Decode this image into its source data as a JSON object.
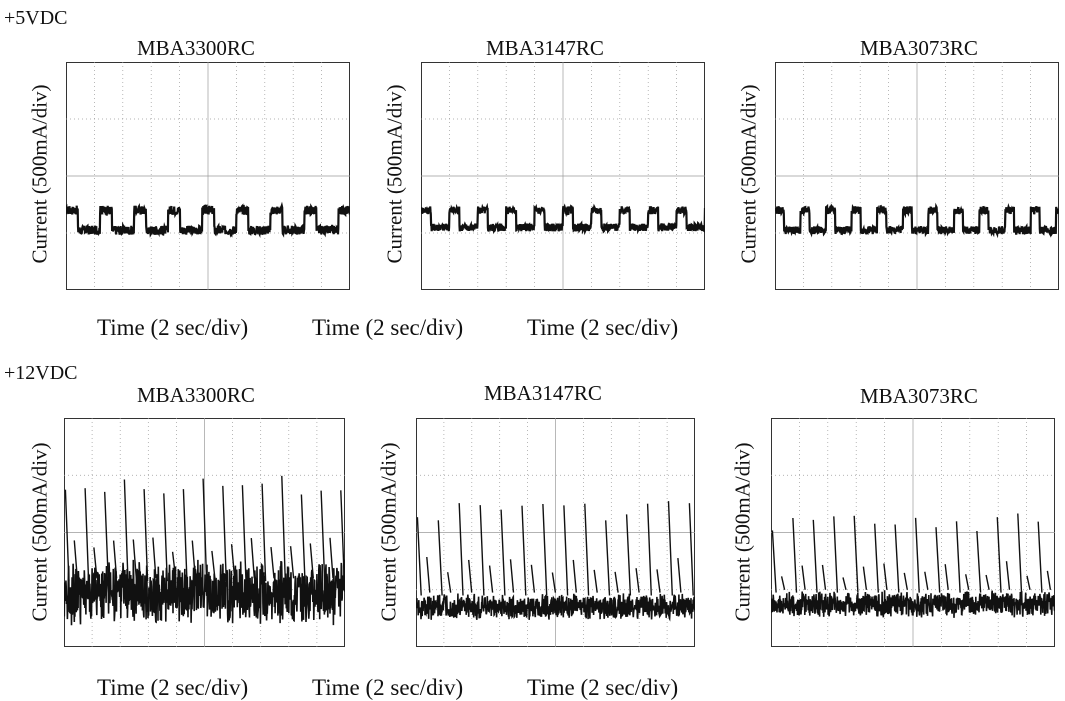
{
  "rows": [
    {
      "label": "+5VDC",
      "xlabels": [
        "Time (2 sec/div)",
        "Time (2 sec/div)",
        "Time (2 sec/div)"
      ],
      "panels": [
        {
          "title": "MBA3300RC",
          "ylabel": "Current (500mA/div)"
        },
        {
          "title": "MBA3147RC",
          "ylabel": "Current (500mA/div)"
        },
        {
          "title": "MBA3073RC",
          "ylabel": "Current (500mA/div)"
        }
      ]
    },
    {
      "label": "+12VDC",
      "xlabels": [
        "Time (2 sec/div)",
        "Time (2 sec/div)",
        "Time (2 sec/div)"
      ],
      "panels": [
        {
          "title": "MBA3300RC",
          "ylabel": "Current (500mA/div)"
        },
        {
          "title": "MBA3147RC",
          "ylabel": "Current (500mA/div)"
        },
        {
          "title": "MBA3073RC",
          "ylabel": "Current (500mA/div)"
        }
      ]
    }
  ],
  "chart_data": [
    {
      "type": "line",
      "supply": "+5VDC",
      "title": "MBA3300RC",
      "ylabel": "Current (500mA/div)",
      "xlabel": "Time (2 sec/div)",
      "xlim": [
        0,
        10
      ],
      "ylim": [
        0,
        4
      ],
      "grid": true,
      "line_color": "#111111",
      "waveform": {
        "kind": "square",
        "period_s": 1.2,
        "low_div": 1.05,
        "high_div": 1.4,
        "noise_div": 0.08
      }
    },
    {
      "type": "line",
      "supply": "+5VDC",
      "title": "MBA3147RC",
      "ylabel": "Current (500mA/div)",
      "xlabel": "Time (2 sec/div)",
      "xlim": [
        0,
        10
      ],
      "ylim": [
        0,
        4
      ],
      "grid": true,
      "line_color": "#111111",
      "waveform": {
        "kind": "square",
        "period_s": 1.0,
        "low_div": 1.1,
        "high_div": 1.4,
        "noise_div": 0.07
      }
    },
    {
      "type": "line",
      "supply": "+5VDC",
      "title": "MBA3073RC",
      "ylabel": "Current (500mA/div)",
      "xlabel": "Time (2 sec/div)",
      "xlim": [
        0,
        10
      ],
      "ylim": [
        0,
        4
      ],
      "grid": true,
      "line_color": "#111111",
      "waveform": {
        "kind": "square",
        "period_s": 0.9,
        "low_div": 1.05,
        "high_div": 1.4,
        "noise_div": 0.07
      }
    },
    {
      "type": "line",
      "supply": "+12VDC",
      "title": "MBA3300RC",
      "ylabel": "Current (500mA/div)",
      "xlabel": "Time (2 sec/div)",
      "xlim": [
        0,
        10
      ],
      "ylim": [
        0,
        4
      ],
      "grid": true,
      "line_color": "#111111",
      "waveform": {
        "kind": "spiky",
        "period_s": 0.7,
        "base_div": 0.95,
        "band_div": 0.85,
        "peak_div": 3.0,
        "mid_div": 1.8,
        "noise_div": 0.35
      }
    },
    {
      "type": "line",
      "supply": "+12VDC",
      "title": "MBA3147RC",
      "ylabel": "Current (500mA/div)",
      "xlabel": "Time (2 sec/div)",
      "xlim": [
        0,
        10
      ],
      "ylim": [
        0,
        4
      ],
      "grid": true,
      "line_color": "#111111",
      "waveform": {
        "kind": "spiky",
        "period_s": 0.75,
        "base_div": 0.7,
        "band_div": 0.35,
        "peak_div": 2.55,
        "mid_div": 1.45,
        "noise_div": 0.15
      }
    },
    {
      "type": "line",
      "supply": "+12VDC",
      "title": "MBA3073RC",
      "ylabel": "Current (500mA/div)",
      "xlabel": "Time (2 sec/div)",
      "xlim": [
        0,
        10
      ],
      "ylim": [
        0,
        4
      ],
      "grid": true,
      "line_color": "#111111",
      "waveform": {
        "kind": "spiky",
        "period_s": 0.72,
        "base_div": 0.75,
        "band_div": 0.35,
        "peak_div": 2.35,
        "mid_div": 1.35,
        "noise_div": 0.15
      }
    }
  ]
}
